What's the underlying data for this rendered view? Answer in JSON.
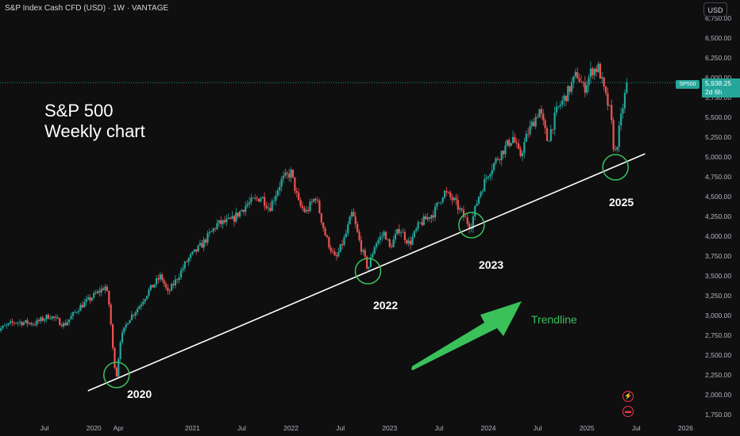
{
  "header": {
    "legend": "S&P Index Cash CFD (USD) · 1W · VANTAGE",
    "currency_button": "USD"
  },
  "overlay": {
    "title_line1": "S&P 500",
    "title_line2": "Weekly chart",
    "symbol_tag": "SP500",
    "last_price": "5,938.25",
    "countdown": "2d 6h",
    "trendline_label": "Trendline",
    "annotations": [
      "2020",
      "2022",
      "2023",
      "2025"
    ]
  },
  "colors": {
    "background": "#0f0f10",
    "up_candle": "#26a69a",
    "down_candle": "#ef5350",
    "trendline": "#ffffff",
    "circle": "#3ac15a",
    "arrow": "#3ac15a",
    "axis_text": "#b2b5be"
  },
  "chart_data": {
    "type": "candlestick",
    "x_axis_ticks": [
      "Jul",
      "2020",
      "Apr",
      "2021",
      "Jul",
      "2022",
      "Jul",
      "2023",
      "Jul",
      "2024",
      "Jul",
      "2025",
      "Jul",
      "2026"
    ],
    "y_axis_ticks": [
      "6,750.00",
      "6,500.00",
      "6,250.00",
      "6,000.00",
      "5,750.00",
      "5,500.00",
      "5,250.00",
      "5,000.00",
      "4,750.00",
      "4,500.00",
      "4,250.00",
      "4,000.00",
      "3,750.00",
      "3,500.00",
      "3,250.00",
      "3,000.00",
      "2,750.00",
      "2,500.00",
      "2,250.00",
      "2,000.00",
      "1,750.00"
    ],
    "x_tick_years": [
      2019.5,
      2020.0,
      2020.25,
      2021.0,
      2021.5,
      2022.0,
      2022.5,
      2023.0,
      2023.5,
      2024.0,
      2024.5,
      2025.0,
      2025.5,
      2026.0
    ],
    "ylim": [
      1700,
      6850
    ],
    "last_price": 5938.25,
    "price_path": [
      [
        2019.0,
        2800
      ],
      [
        2019.2,
        2920
      ],
      [
        2019.4,
        2900
      ],
      [
        2019.55,
        3000
      ],
      [
        2019.7,
        2880
      ],
      [
        2019.85,
        3100
      ],
      [
        2020.05,
        3300
      ],
      [
        2020.12,
        3370
      ],
      [
        2020.16,
        3100
      ],
      [
        2020.2,
        2450
      ],
      [
        2020.23,
        2240
      ],
      [
        2020.27,
        2700
      ],
      [
        2020.35,
        2950
      ],
      [
        2020.45,
        3100
      ],
      [
        2020.55,
        3300
      ],
      [
        2020.68,
        3500
      ],
      [
        2020.75,
        3280
      ],
      [
        2020.82,
        3420
      ],
      [
        2020.95,
        3700
      ],
      [
        2021.1,
        3900
      ],
      [
        2021.25,
        4150
      ],
      [
        2021.4,
        4200
      ],
      [
        2021.55,
        4400
      ],
      [
        2021.7,
        4500
      ],
      [
        2021.78,
        4350
      ],
      [
        2021.9,
        4700
      ],
      [
        2022.0,
        4800
      ],
      [
        2022.08,
        4400
      ],
      [
        2022.15,
        4300
      ],
      [
        2022.25,
        4500
      ],
      [
        2022.35,
        4000
      ],
      [
        2022.45,
        3700
      ],
      [
        2022.55,
        4000
      ],
      [
        2022.62,
        4300
      ],
      [
        2022.7,
        3900
      ],
      [
        2022.78,
        3580
      ],
      [
        2022.85,
        3900
      ],
      [
        2022.95,
        4050
      ],
      [
        2023.0,
        3850
      ],
      [
        2023.1,
        4100
      ],
      [
        2023.2,
        3900
      ],
      [
        2023.3,
        4150
      ],
      [
        2023.45,
        4300
      ],
      [
        2023.55,
        4560
      ],
      [
        2023.65,
        4450
      ],
      [
        2023.75,
        4250
      ],
      [
        2023.82,
        4120
      ],
      [
        2023.9,
        4500
      ],
      [
        2024.0,
        4800
      ],
      [
        2024.1,
        5000
      ],
      [
        2024.25,
        5250
      ],
      [
        2024.32,
        5000
      ],
      [
        2024.4,
        5300
      ],
      [
        2024.52,
        5600
      ],
      [
        2024.6,
        5200
      ],
      [
        2024.7,
        5600
      ],
      [
        2024.8,
        5800
      ],
      [
        2024.9,
        6050
      ],
      [
        2024.97,
        5850
      ],
      [
        2025.05,
        6100
      ],
      [
        2025.12,
        6120
      ],
      [
        2025.18,
        5800
      ],
      [
        2025.24,
        5550
      ],
      [
        2025.28,
        5000
      ],
      [
        2025.31,
        5200
      ],
      [
        2025.36,
        5600
      ],
      [
        2025.41,
        5950
      ]
    ],
    "trendline": [
      [
        2019.94,
        2050
      ],
      [
        2025.59,
        5040
      ]
    ],
    "circles": [
      {
        "label": "2020",
        "x": 2020.23,
        "y": 2250
      },
      {
        "label": "2022",
        "x": 2022.78,
        "y": 3560
      },
      {
        "label": "2023",
        "x": 2023.83,
        "y": 4140
      },
      {
        "label": "2025",
        "x": 2025.29,
        "y": 4870
      }
    ]
  }
}
